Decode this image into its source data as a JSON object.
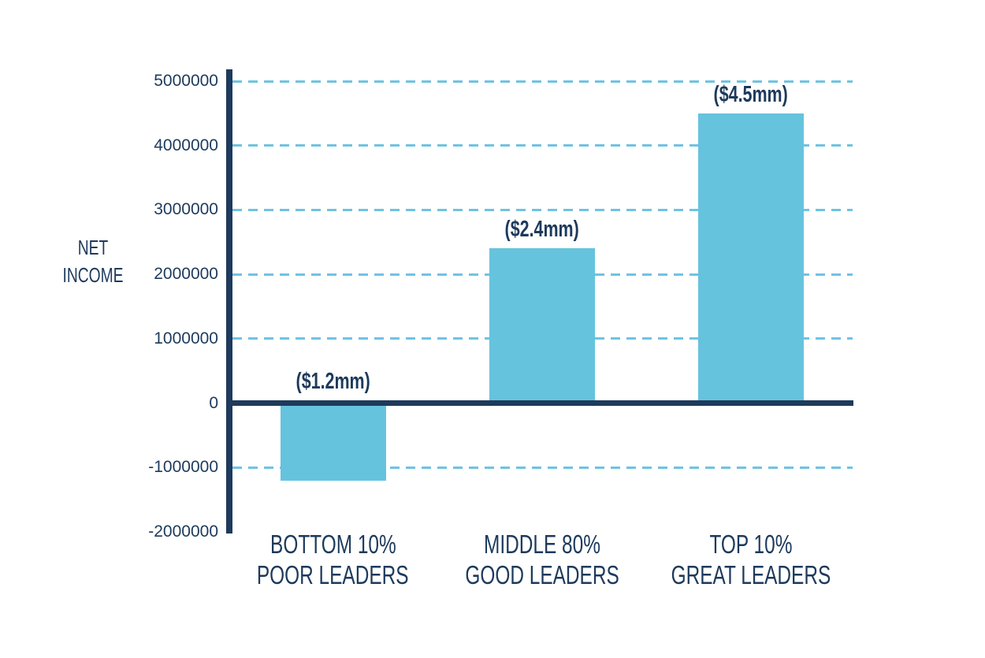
{
  "chart_data": {
    "type": "bar",
    "title": "",
    "ylabel": "NET INCOME",
    "ylabel_lines": [
      "NET",
      "INCOME"
    ],
    "xlabel": "",
    "legend": "none",
    "grid": "horizontal-dashed",
    "ylim": [
      -2000000,
      5000000
    ],
    "categories": [
      "BOTTOM 10% POOR LEADERS",
      "MIDDLE 80% GOOD LEADERS",
      "TOP 10% GREAT LEADERS"
    ],
    "category_lines": [
      [
        "BOTTOM 10%",
        "POOR LEADERS"
      ],
      [
        "MIDDLE 80%",
        "GOOD LEADERS"
      ],
      [
        "TOP 10%",
        "GREAT LEADERS"
      ]
    ],
    "values": [
      -1200000,
      2400000,
      4500000
    ],
    "bar_labels": [
      "($1.2mm)",
      "($2.4mm)",
      "($4.5mm)"
    ],
    "y_ticks": [
      {
        "label": "5000000",
        "value": 5000000,
        "grid": true
      },
      {
        "label": "4000000",
        "value": 4000000,
        "grid": true
      },
      {
        "label": "3000000",
        "value": 3000000,
        "grid": true
      },
      {
        "label": "2000000",
        "value": 2000000,
        "grid": true
      },
      {
        "label": "1000000",
        "value": 1000000,
        "grid": true
      },
      {
        "label": "0",
        "value": 0,
        "grid": false
      },
      {
        "label": "-1000000",
        "value": -1000000,
        "grid": true
      },
      {
        "label": "-2000000",
        "value": -2000000,
        "grid": false
      }
    ],
    "colors": {
      "bar": "#66c3dd",
      "axis": "#1e3a5c",
      "grid": "#6fc3e2",
      "text": "#1d3a5c",
      "background": "#ffffff"
    }
  }
}
